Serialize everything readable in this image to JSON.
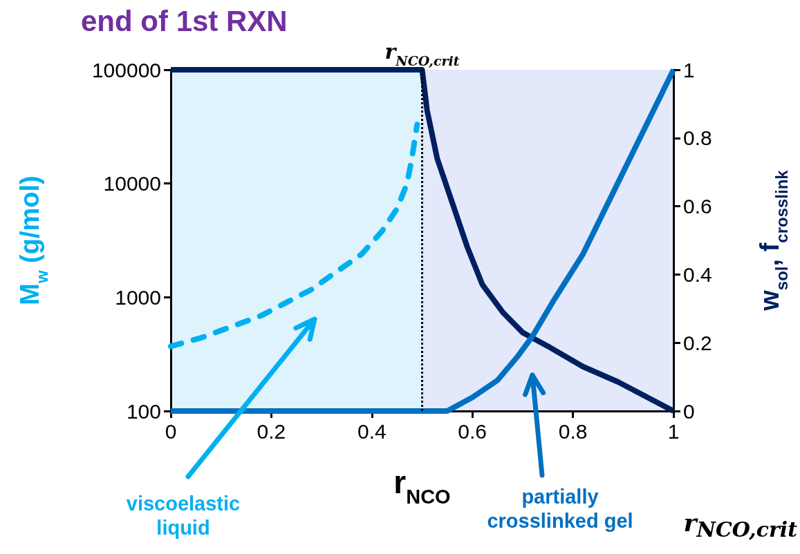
{
  "chart_data": {
    "type": "line",
    "title": "end of 1st RXN",
    "xlabel": "r$_{NCO}$",
    "ylabel": "M$_{w}$ (g/mol)",
    "y2label": "w$_{sol}$, f$_{crosslink}$",
    "xlim": [
      0,
      1
    ],
    "xticks": [
      0,
      0.2,
      0.4,
      0.6,
      0.8,
      1
    ],
    "ylim": [
      100,
      100000
    ],
    "yticks": [
      100,
      1000,
      10000,
      100000
    ],
    "log": "y",
    "y2lim": [
      0,
      1
    ],
    "y2ticks": [
      0,
      0.2,
      0.4,
      0.6,
      0.8,
      1
    ],
    "marker": "none",
    "series": [
      {
        "color": "#00b0f0",
        "line_style": "dashed",
        "x": [
          0,
          0.06,
          0.12,
          0.18,
          0.23,
          0.28,
          0.33,
          0.38,
          0.42,
          0.45,
          0.47,
          0.48,
          0.49
        ],
        "values": [
          370,
          440,
          550,
          690,
          900,
          1170,
          1680,
          2400,
          3800,
          6000,
          10000,
          17000,
          33000
        ]
      },
      {
        "color": "#002060",
        "axis": "y2",
        "x": [
          0,
          0.5,
          0.51,
          0.53,
          0.56,
          0.59,
          0.62,
          0.66,
          0.7,
          0.75,
          0.82,
          0.89,
          1
        ],
        "values": [
          1,
          1,
          0.88,
          0.74,
          0.61,
          0.48,
          0.37,
          0.29,
          0.23,
          0.19,
          0.13,
          0.085,
          0
        ]
      },
      {
        "color": "#0070c0",
        "axis": "y2",
        "x": [
          0,
          0.55,
          0.6,
          0.65,
          0.69,
          0.72,
          0.76,
          0.82,
          0.89,
          0.96,
          1
        ],
        "values": [
          0,
          0,
          0.04,
          0.09,
          0.16,
          0.22,
          0.32,
          0.46,
          0.67,
          0.88,
          1
        ]
      }
    ],
    "ref_lines": [
      {
        "axis": "x",
        "value": 0.5,
        "label": "r$_{NCO,crit}$",
        "line_style": "dotted",
        "color": "#000000"
      }
    ],
    "bands": [
      {
        "axis": "x",
        "from": 0,
        "to": 0.5,
        "color": "#dff3fc"
      },
      {
        "axis": "x",
        "from": 0.5,
        "to": 1,
        "color": "#e3e9fb"
      }
    ],
    "annotations": [
      "viscoelastic liquid",
      "partially crosslinked gel",
      "r$_{NCO,crit}$"
    ]
  }
}
